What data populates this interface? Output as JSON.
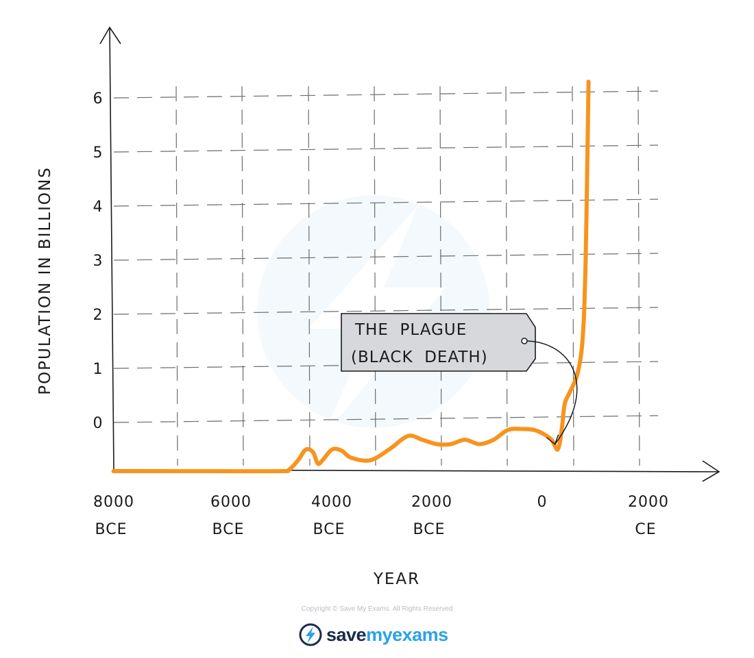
{
  "chart_data": {
    "type": "line",
    "xlabel": "YEAR",
    "ylabel": "POPULATION IN BILLIONS",
    "xlim": [
      -8000,
      3000
    ],
    "ylim": [
      -1,
      7
    ],
    "grid": true,
    "x_ticks": [
      {
        "value": -8000,
        "line1": "8000",
        "line2": "BCE"
      },
      {
        "value": -6000,
        "line1": "6000",
        "line2": "BCE"
      },
      {
        "value": -4000,
        "line1": "4000",
        "line2": "BCE"
      },
      {
        "value": -2000,
        "line1": "2000",
        "line2": "BCE"
      },
      {
        "value": 0,
        "line1": "0",
        "line2": ""
      },
      {
        "value": 2000,
        "line1": "2000",
        "line2": "CE"
      }
    ],
    "y_ticks": [
      {
        "value": 0,
        "label": "0"
      },
      {
        "value": 1,
        "label": "1"
      },
      {
        "value": 2,
        "label": "2"
      },
      {
        "value": 3,
        "label": "3"
      },
      {
        "value": 4,
        "label": "4"
      },
      {
        "value": 5,
        "label": "5"
      },
      {
        "value": 6,
        "label": "6"
      }
    ],
    "series": [
      {
        "color": "#f7941d",
        "x": [
          -8000,
          -6000,
          -4500,
          -4300,
          -4100,
          -3950,
          -3800,
          -3700,
          -3600,
          -3400,
          -3200,
          -3000,
          -2600,
          -2200,
          -1800,
          -1500,
          -1200,
          -900,
          -600,
          -300,
          0,
          300,
          600,
          900,
          1200,
          1300,
          1350,
          1400,
          1450,
          1500,
          1600,
          1750,
          1850,
          1900,
          1920,
          1940,
          1960,
          1980,
          2000
        ],
        "y": [
          -0.9,
          -0.9,
          -0.9,
          -0.87,
          -0.68,
          -0.5,
          -0.55,
          -0.76,
          -0.7,
          -0.5,
          -0.52,
          -0.65,
          -0.7,
          -0.5,
          -0.25,
          -0.32,
          -0.4,
          -0.4,
          -0.32,
          -0.4,
          -0.32,
          -0.14,
          -0.12,
          -0.15,
          -0.3,
          -0.45,
          -0.5,
          -0.35,
          -0.02,
          0.35,
          0.55,
          0.85,
          1.3,
          1.9,
          2.4,
          3.0,
          4.0,
          5.1,
          6.3
        ]
      }
    ],
    "annotations": [
      {
        "line1": "THE  PLAGUE",
        "line2": "(BLACK  DEATH)",
        "x": 1350,
        "y": -0.48
      }
    ]
  },
  "footer": {
    "copyright": "Copyright © Save My Exams. All Rights Reserved",
    "brand_save": "save",
    "brand_my": "my",
    "brand_exams": "exams"
  }
}
